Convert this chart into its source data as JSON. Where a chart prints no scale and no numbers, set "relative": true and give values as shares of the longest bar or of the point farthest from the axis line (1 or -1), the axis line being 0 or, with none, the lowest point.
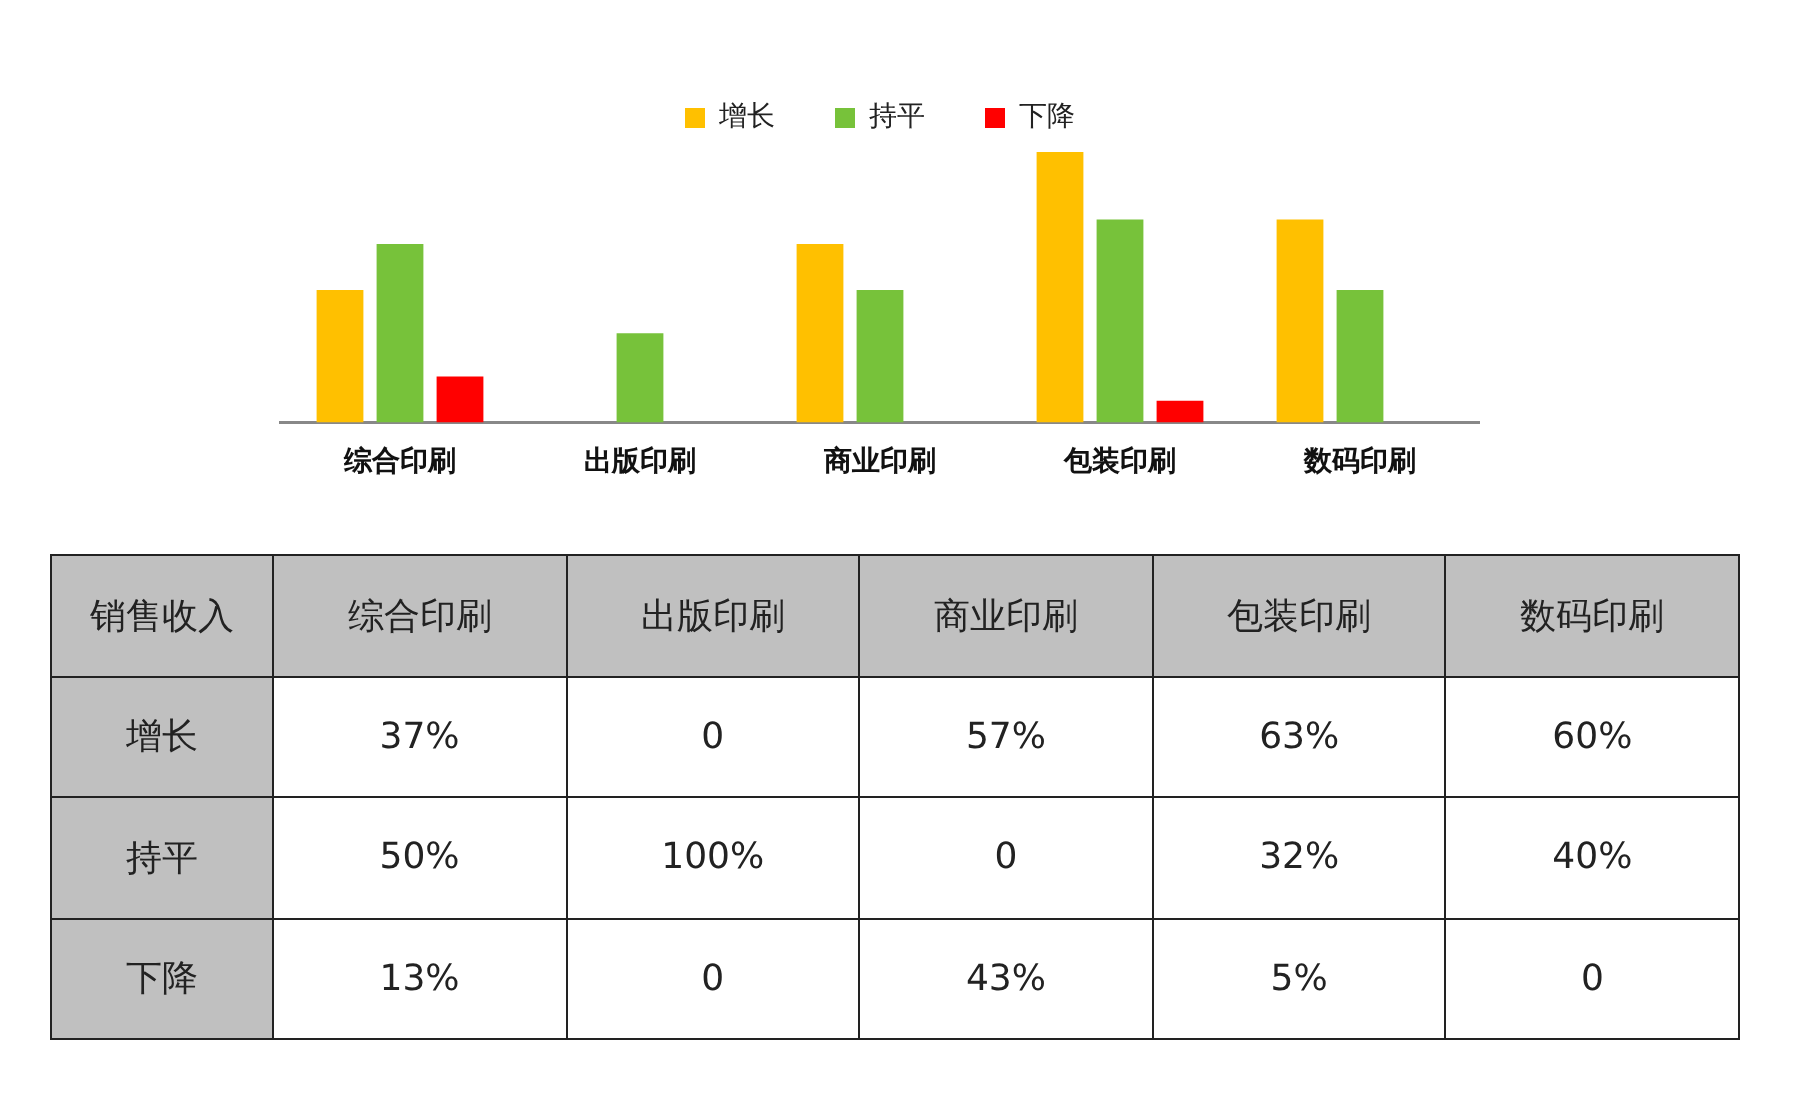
{
  "chart_data": [
    {
      "type": "bar",
      "relative": true,
      "legend": "top",
      "categories": [
        "综合印刷",
        "出版印刷",
        "商业印刷",
        "包装印刷",
        "数码印刷"
      ],
      "series": [
        {
          "name": "增长",
          "color": "#ffc000",
          "values": [
            0.49,
            0,
            0.66,
            1,
            0.75
          ]
        },
        {
          "name": "持平",
          "color": "#77c23a",
          "values": [
            0.66,
            0.33,
            0.49,
            0.75,
            0.49
          ]
        },
        {
          "name": "下降",
          "color": "#ff0000",
          "values": [
            0.17,
            0,
            0,
            0.08,
            0
          ]
        }
      ]
    },
    {
      "type": "other",
      "ylabel": "销售收入",
      "categories": [
        "综合印刷",
        "出版印刷",
        "商业印刷",
        "包装印刷",
        "数码印刷"
      ],
      "y_categories": [
        "增长",
        "持平",
        "下降"
      ],
      "cell_labels": [
        [
          "37%",
          "0",
          "57%",
          "63%",
          "60%"
        ],
        [
          "50%",
          "100%",
          "0",
          "32%",
          "40%"
        ],
        [
          "13%",
          "0",
          "43%",
          "5%",
          "0"
        ]
      ]
    }
  ]
}
